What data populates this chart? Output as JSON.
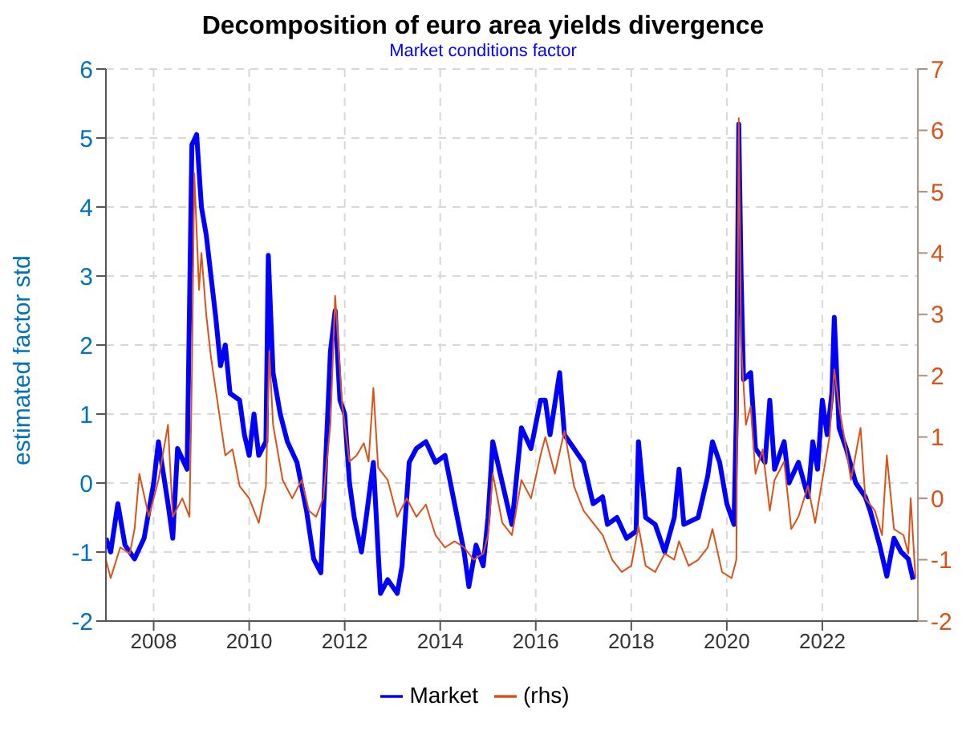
{
  "chart_data": {
    "type": "line",
    "title": "Decomposition of euro area yields divergence",
    "subtitle": "Market conditions factor",
    "ylabel": "estimated factor std",
    "xlim": [
      2007,
      2024
    ],
    "xticks": [
      2008,
      2010,
      2012,
      2014,
      2016,
      2018,
      2020,
      2022
    ],
    "ylim": [
      -2,
      6
    ],
    "yticks": [
      -2,
      -1,
      0,
      1,
      2,
      3,
      4,
      5,
      6
    ],
    "y2lim": [
      -2,
      7
    ],
    "y2ticks": [
      -2,
      -1,
      0,
      1,
      2,
      3,
      4,
      5,
      6,
      7
    ],
    "grid": true,
    "legend": "bottom",
    "series": [
      {
        "name": "Market",
        "color": "#0000ff",
        "x": [
          2007.0,
          2007.1,
          2007.25,
          2007.4,
          2007.6,
          2007.8,
          2008.0,
          2008.1,
          2008.3,
          2008.4,
          2008.5,
          2008.7,
          2008.8,
          2008.9,
          2009.0,
          2009.1,
          2009.2,
          2009.3,
          2009.4,
          2009.5,
          2009.6,
          2009.8,
          2009.9,
          2010.0,
          2010.1,
          2010.2,
          2010.35,
          2010.4,
          2010.5,
          2010.65,
          2010.8,
          2011.0,
          2011.2,
          2011.35,
          2011.5,
          2011.6,
          2011.7,
          2011.8,
          2011.9,
          2012.0,
          2012.1,
          2012.2,
          2012.35,
          2012.45,
          2012.6,
          2012.7,
          2012.75,
          2012.9,
          2013.1,
          2013.2,
          2013.35,
          2013.5,
          2013.7,
          2013.9,
          2014.1,
          2014.3,
          2014.5,
          2014.6,
          2014.75,
          2014.9,
          2015.0,
          2015.1,
          2015.3,
          2015.5,
          2015.7,
          2015.9,
          2016.0,
          2016.1,
          2016.2,
          2016.3,
          2016.5,
          2016.6,
          2016.8,
          2017.0,
          2017.2,
          2017.4,
          2017.5,
          2017.7,
          2017.9,
          2018.1,
          2018.15,
          2018.3,
          2018.5,
          2018.7,
          2018.9,
          2019.0,
          2019.1,
          2019.4,
          2019.6,
          2019.7,
          2019.85,
          2020.0,
          2020.1,
          2020.15,
          2020.2,
          2020.25,
          2020.3,
          2020.35,
          2020.5,
          2020.6,
          2020.8,
          2020.9,
          2021.0,
          2021.2,
          2021.3,
          2021.5,
          2021.7,
          2021.8,
          2021.9,
          2022.0,
          2022.1,
          2022.2,
          2022.25,
          2022.35,
          2022.5,
          2022.7,
          2022.9,
          2023.0,
          2023.2,
          2023.35,
          2023.5,
          2023.65,
          2023.8,
          2023.9
        ],
        "values": [
          -0.8,
          -1.0,
          -0.3,
          -0.9,
          -1.1,
          -0.8,
          0.0,
          0.6,
          -0.3,
          -0.8,
          0.5,
          0.2,
          4.9,
          5.05,
          4.0,
          3.6,
          3.0,
          2.4,
          1.7,
          2.0,
          1.3,
          1.2,
          0.7,
          0.4,
          1.0,
          0.4,
          0.6,
          3.3,
          1.6,
          1.0,
          0.6,
          0.3,
          -0.4,
          -1.1,
          -1.3,
          0.3,
          1.9,
          2.5,
          1.2,
          1.0,
          0.0,
          -0.5,
          -1.0,
          -0.5,
          0.3,
          -1.0,
          -1.6,
          -1.4,
          -1.6,
          -1.2,
          0.3,
          0.5,
          0.6,
          0.3,
          0.4,
          -0.3,
          -1.0,
          -1.5,
          -0.9,
          -1.2,
          -0.5,
          0.6,
          0.0,
          -0.6,
          0.8,
          0.5,
          0.85,
          1.2,
          1.2,
          0.7,
          1.6,
          0.7,
          0.5,
          0.3,
          -0.3,
          -0.2,
          -0.6,
          -0.5,
          -0.8,
          -0.7,
          0.6,
          -0.5,
          -0.6,
          -1.0,
          -0.5,
          0.2,
          -0.6,
          -0.5,
          0.1,
          0.6,
          0.3,
          -0.3,
          -0.5,
          -0.6,
          1.0,
          5.2,
          3.0,
          1.5,
          1.6,
          0.5,
          0.3,
          1.2,
          0.2,
          0.6,
          0.0,
          0.3,
          -0.2,
          0.6,
          0.2,
          1.2,
          0.7,
          1.3,
          2.4,
          0.8,
          0.5,
          0.0,
          -0.2,
          -0.4,
          -0.9,
          -1.35,
          -0.8,
          -1.0,
          -1.1,
          -1.4
        ]
      },
      {
        "name": "(rhs)",
        "color": "#d95319",
        "axis": "y2",
        "x": [
          2007.0,
          2007.1,
          2007.3,
          2007.5,
          2007.6,
          2007.7,
          2007.9,
          2008.1,
          2008.3,
          2008.4,
          2008.6,
          2008.75,
          2008.8,
          2008.85,
          2008.95,
          2009.0,
          2009.1,
          2009.2,
          2009.35,
          2009.5,
          2009.65,
          2009.8,
          2010.0,
          2010.2,
          2010.35,
          2010.42,
          2010.5,
          2010.7,
          2010.9,
          2011.1,
          2011.25,
          2011.4,
          2011.55,
          2011.7,
          2011.8,
          2011.95,
          2012.1,
          2012.25,
          2012.4,
          2012.5,
          2012.6,
          2012.7,
          2012.9,
          2013.1,
          2013.3,
          2013.5,
          2013.7,
          2013.9,
          2014.1,
          2014.3,
          2014.5,
          2014.7,
          2014.9,
          2015.0,
          2015.1,
          2015.3,
          2015.5,
          2015.7,
          2015.9,
          2016.1,
          2016.2,
          2016.4,
          2016.6,
          2016.8,
          2017.0,
          2017.2,
          2017.4,
          2017.6,
          2017.8,
          2018.0,
          2018.15,
          2018.3,
          2018.5,
          2018.7,
          2018.9,
          2019.0,
          2019.2,
          2019.4,
          2019.6,
          2019.7,
          2019.9,
          2020.1,
          2020.2,
          2020.25,
          2020.3,
          2020.4,
          2020.5,
          2020.6,
          2020.75,
          2020.9,
          2021.0,
          2021.2,
          2021.35,
          2021.5,
          2021.7,
          2021.85,
          2022.0,
          2022.15,
          2022.25,
          2022.35,
          2022.5,
          2022.6,
          2022.8,
          2022.9,
          2023.1,
          2023.25,
          2023.35,
          2023.5,
          2023.7,
          2023.8,
          2023.85,
          2023.95
        ],
        "values": [
          -1.0,
          -1.3,
          -0.8,
          -0.9,
          -0.5,
          0.4,
          -0.3,
          0.3,
          1.2,
          -0.3,
          0.0,
          -0.3,
          2.0,
          5.3,
          3.4,
          4.0,
          3.0,
          2.3,
          1.5,
          0.7,
          0.8,
          0.2,
          0.0,
          -0.4,
          0.2,
          2.4,
          1.2,
          0.3,
          0.0,
          0.3,
          -0.2,
          -0.3,
          0.0,
          1.2,
          3.3,
          1.5,
          0.6,
          0.7,
          0.9,
          0.6,
          1.8,
          0.5,
          0.3,
          -0.3,
          0.0,
          -0.3,
          -0.1,
          -0.6,
          -0.8,
          -0.7,
          -0.8,
          -1.0,
          -0.9,
          -0.6,
          0.4,
          -0.4,
          -0.6,
          0.3,
          0.0,
          0.7,
          1.0,
          0.4,
          1.1,
          0.2,
          -0.2,
          -0.4,
          -0.6,
          -1.0,
          -1.2,
          -1.1,
          -0.45,
          -1.1,
          -1.2,
          -0.9,
          -1.0,
          -0.7,
          -1.1,
          -1.0,
          -0.8,
          -0.5,
          -1.2,
          -1.3,
          -1.0,
          6.2,
          2.5,
          1.2,
          1.5,
          0.4,
          0.8,
          -0.2,
          0.3,
          0.6,
          -0.5,
          -0.3,
          0.2,
          -0.4,
          0.3,
          1.0,
          2.1,
          1.5,
          0.8,
          0.3,
          1.15,
          0.0,
          -0.2,
          -0.6,
          0.7,
          -0.5,
          -0.6,
          -0.9,
          0.0,
          -1.3
        ]
      }
    ]
  }
}
